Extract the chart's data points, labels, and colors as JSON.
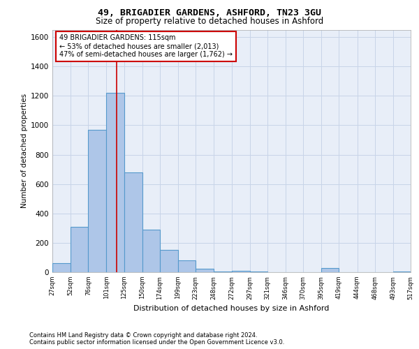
{
  "title1": "49, BRIGADIER GARDENS, ASHFORD, TN23 3GU",
  "title2": "Size of property relative to detached houses in Ashford",
  "xlabel": "Distribution of detached houses by size in Ashford",
  "ylabel": "Number of detached properties",
  "footnote1": "Contains HM Land Registry data © Crown copyright and database right 2024.",
  "footnote2": "Contains public sector information licensed under the Open Government Licence v3.0.",
  "annotation_line1": "49 BRIGADIER GARDENS: 115sqm",
  "annotation_line2": "← 53% of detached houses are smaller (2,013)",
  "annotation_line3": "47% of semi-detached houses are larger (1,762) →",
  "property_size": 115,
  "bin_edges": [
    27,
    52,
    76,
    101,
    125,
    150,
    174,
    199,
    223,
    248,
    272,
    297,
    321,
    346,
    370,
    395,
    419,
    444,
    468,
    493,
    517
  ],
  "bin_counts": [
    60,
    310,
    970,
    1220,
    680,
    290,
    150,
    80,
    25,
    5,
    10,
    5,
    0,
    0,
    0,
    30,
    0,
    0,
    0,
    5
  ],
  "bar_color": "#aec6e8",
  "bar_edge_color": "#5599cc",
  "marker_line_color": "#cc0000",
  "grid_color": "#c8d4e8",
  "background_color": "#e8eef8",
  "annotation_box_color": "#ffffff",
  "annotation_box_edge": "#cc0000",
  "ylim": [
    0,
    1650
  ],
  "yticks": [
    0,
    200,
    400,
    600,
    800,
    1000,
    1200,
    1400,
    1600
  ]
}
